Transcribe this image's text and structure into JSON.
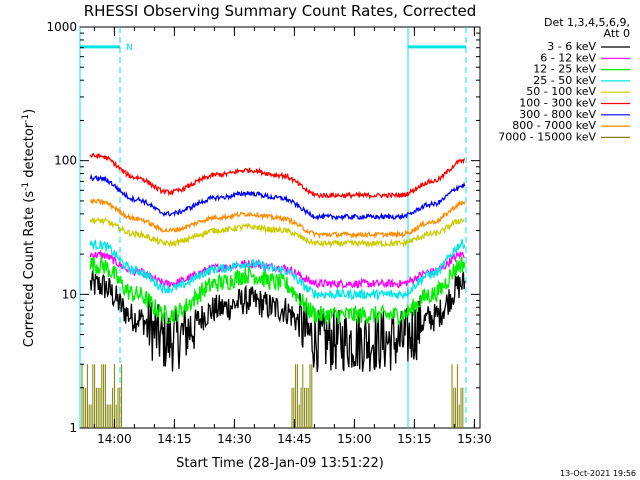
{
  "chart_data": {
    "type": "line",
    "title": "RHESSI Observing Summary Count Rates, Corrected",
    "xlabel": "Start Time (28-Jan-09 13:51:22)",
    "ylabel_main": "Corrected Count Rate (s",
    "ylabel_sup1": "-1",
    "ylabel_mid": " detector",
    "ylabel_sup2": "-1",
    "ylabel_end": ")",
    "y_scale": "log",
    "ylim": [
      1,
      1000
    ],
    "xlim_minutes": [
      0,
      100
    ],
    "x_ticks": [
      {
        "label": "14:00",
        "t": 8.6
      },
      {
        "label": "14:15",
        "t": 23.6
      },
      {
        "label": "14:30",
        "t": 38.6
      },
      {
        "label": "14:45",
        "t": 53.6
      },
      {
        "label": "15:00",
        "t": 68.6
      },
      {
        "label": "15:15",
        "t": 83.6
      },
      {
        "label": "15:30",
        "t": 98.6
      }
    ],
    "y_ticks": [
      {
        "label": "1",
        "v": 1
      },
      {
        "label": "10",
        "v": 10
      },
      {
        "label": "100",
        "v": 100
      },
      {
        "label": "1000",
        "v": 1000
      }
    ],
    "legend_header_1": "Det 1,3,4,5,6,9,",
    "legend_header_2": "Att 0",
    "legend_placement": "right",
    "flag_label": "N",
    "timestamp": "13-Oct-2021 19:56",
    "boundaries": [
      {
        "t": 0,
        "style": "solid"
      },
      {
        "t": 10,
        "style": "dashed"
      },
      {
        "t": 82,
        "style": "solid"
      },
      {
        "t": 96.5,
        "style": "dashed"
      }
    ],
    "flags": [
      {
        "t0": 0,
        "t1": 10
      },
      {
        "t0": 82,
        "t1": 96.5
      }
    ],
    "series": [
      {
        "name": "3 - 6 keV",
        "color": "#000000",
        "start": 12,
        "trough1": 4.5,
        "hump": 9,
        "trough2": 4.5,
        "end": 12,
        "noise": 0.25
      },
      {
        "name": "6 - 12 keV",
        "color": "#ff00ff",
        "start": 20,
        "trough1": 12,
        "hump": 17,
        "trough2": 12,
        "end": 20,
        "noise": 0.07
      },
      {
        "name": "12 - 25 keV",
        "color": "#00ee00",
        "start": 17,
        "trough1": 7,
        "hump": 14,
        "trough2": 7,
        "end": 17,
        "noise": 0.16
      },
      {
        "name": "25 - 50 keV",
        "color": "#00e5e5",
        "start": 24,
        "trough1": 11,
        "hump": 17,
        "trough2": 10,
        "end": 24,
        "noise": 0.08
      },
      {
        "name": "50 - 100 keV",
        "color": "#cccc00",
        "start": 36,
        "trough1": 24,
        "hump": 32,
        "trough2": 24,
        "end": 36,
        "noise": 0.05
      },
      {
        "name": "100 - 300 keV",
        "color": "#ff0000",
        "start": 110,
        "trough1": 58,
        "hump": 85,
        "trough2": 55,
        "end": 100,
        "noise": 0.04
      },
      {
        "name": "300 - 800 keV",
        "color": "#0000ff",
        "start": 75,
        "trough1": 40,
        "hump": 57,
        "trough2": 38,
        "end": 65,
        "noise": 0.04
      },
      {
        "name": "800 - 7000 keV",
        "color": "#ff8c00",
        "start": 50,
        "trough1": 30,
        "hump": 40,
        "trough2": 28,
        "end": 48,
        "noise": 0.04
      },
      {
        "name": "7000 - 15000 keV",
        "color": "#808000",
        "start": 2,
        "trough1": 1,
        "hump": 1,
        "trough2": 1,
        "end": 2,
        "noise": 0.0
      }
    ]
  }
}
